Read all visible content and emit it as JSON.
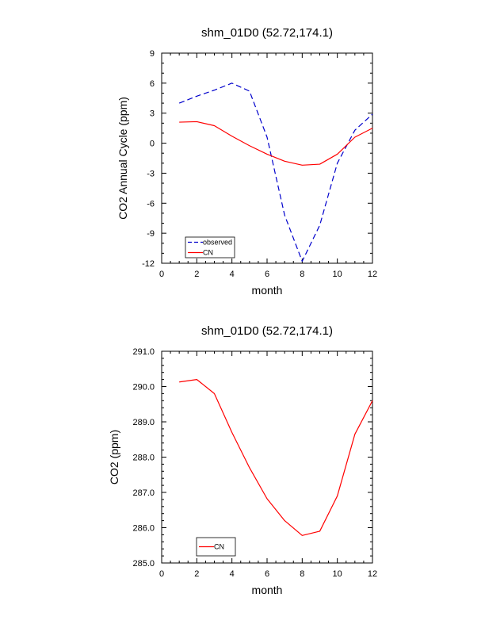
{
  "chart_data": [
    {
      "type": "line",
      "title": "shm_01D0 (52.72,174.1)",
      "xlabel": "month",
      "ylabel": "CO2 Annual Cycle (ppm)",
      "xlim": [
        0,
        12
      ],
      "ylim": [
        -12,
        9
      ],
      "xticks": [
        0,
        2,
        4,
        6,
        8,
        10,
        12
      ],
      "xtick_labels": [
        "0",
        "2",
        "4",
        "6",
        "8",
        "10",
        "12"
      ],
      "yticks": [
        -12,
        -9,
        -6,
        -3,
        0,
        3,
        6,
        9
      ],
      "ytick_labels": [
        "-12",
        "-9",
        "-6",
        "-3",
        "0",
        "3",
        "6",
        "9"
      ],
      "x_minor_step": 0.5,
      "y_minor_step": 1,
      "grid": false,
      "legend_position": "bottom-left",
      "series": [
        {
          "name": "observed",
          "color": "#0000cc",
          "dash": true,
          "x": [
            1,
            2,
            3,
            4,
            5,
            6,
            7,
            8,
            9,
            10,
            11,
            12
          ],
          "values": [
            4.0,
            4.7,
            5.3,
            6.0,
            5.2,
            0.6,
            -7.2,
            -11.8,
            -8.2,
            -2.0,
            1.3,
            2.9
          ]
        },
        {
          "name": "CN",
          "color": "#ff0000",
          "dash": false,
          "x": [
            1,
            2,
            3,
            4,
            5,
            6,
            7,
            8,
            9,
            10,
            11,
            12
          ],
          "values": [
            2.1,
            2.15,
            1.75,
            0.7,
            -0.25,
            -1.1,
            -1.8,
            -2.2,
            -2.1,
            -1.1,
            0.6,
            1.5
          ]
        }
      ]
    },
    {
      "type": "line",
      "title": "shm_01D0 (52.72,174.1)",
      "xlabel": "month",
      "ylabel": "CO2 (ppm)",
      "xlim": [
        0,
        12
      ],
      "ylim": [
        285,
        291
      ],
      "xticks": [
        0,
        2,
        4,
        6,
        8,
        10,
        12
      ],
      "xtick_labels": [
        "0",
        "2",
        "4",
        "6",
        "8",
        "10",
        "12"
      ],
      "yticks": [
        285,
        286,
        287,
        288,
        289,
        290,
        291
      ],
      "ytick_labels": [
        "285.0",
        "286.0",
        "287.0",
        "288.0",
        "289.0",
        "290.0",
        "291.0"
      ],
      "x_minor_step": 0.5,
      "y_minor_step": 0.2,
      "grid": false,
      "legend_position": "bottom-left",
      "series": [
        {
          "name": "CN",
          "color": "#ff0000",
          "dash": false,
          "x": [
            1,
            2,
            3,
            4,
            5,
            6,
            7,
            8,
            9,
            10,
            11,
            12
          ],
          "values": [
            290.13,
            290.2,
            289.8,
            288.7,
            287.7,
            286.82,
            286.2,
            285.78,
            285.9,
            286.9,
            288.65,
            289.6
          ]
        }
      ]
    }
  ]
}
